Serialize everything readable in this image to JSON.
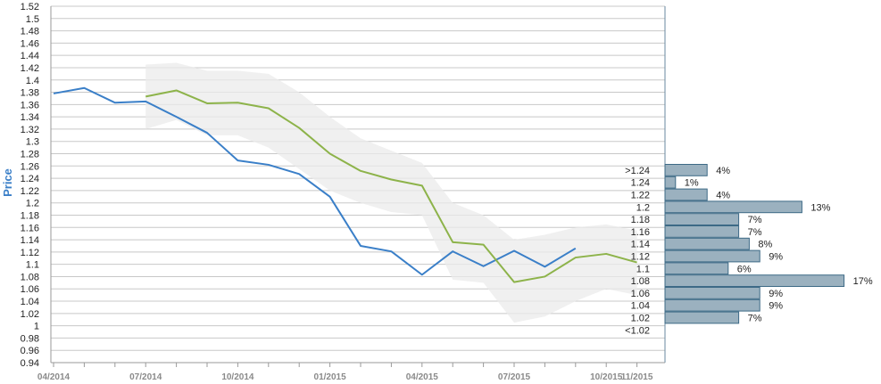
{
  "chart_data": {
    "type": "line",
    "ylabel": "Price",
    "xlabel": "",
    "ylim": [
      0.94,
      1.52
    ],
    "y_ticks": [
      "0.94",
      "0.96",
      "0.98",
      "1",
      "1.02",
      "1.04",
      "1.06",
      "1.08",
      "1.1",
      "1.12",
      "1.14",
      "1.16",
      "1.18",
      "1.2",
      "1.22",
      "1.24",
      "1.26",
      "1.28",
      "1.3",
      "1.32",
      "1.34",
      "1.36",
      "1.38",
      "1.4",
      "1.42",
      "1.44",
      "1.46",
      "1.48",
      "1.5",
      "1.52"
    ],
    "x_tick_labels": [
      "04/2014",
      "07/2014",
      "10/2014",
      "01/2015",
      "04/2015",
      "07/2015",
      "10/2015",
      "11/2015"
    ],
    "grid": true,
    "colors": {
      "blue": "#3a7fc8",
      "green": "#8db34a",
      "band": "#ebebeb",
      "dist_bar": "#9bb1bf"
    },
    "series": [
      {
        "x": [
          "04/2014",
          "05/2014",
          "06/2014",
          "07/2014",
          "08/2014",
          "09/2014",
          "10/2014",
          "11/2014",
          "12/2014",
          "01/2015",
          "02/2015",
          "03/2015",
          "04/2015",
          "05/2015",
          "06/2015",
          "07/2015",
          "08/2015",
          "09/2015"
        ],
        "values": [
          1.378,
          1.387,
          1.363,
          1.365,
          1.34,
          1.314,
          1.269,
          1.262,
          1.247,
          1.21,
          1.13,
          1.121,
          1.083,
          1.121,
          1.097,
          1.122,
          1.096,
          1.126
        ]
      },
      {
        "x": [
          "07/2014",
          "08/2014",
          "09/2014",
          "10/2014",
          "11/2014",
          "12/2014",
          "01/2015",
          "02/2015",
          "03/2015",
          "04/2015",
          "05/2015",
          "06/2015",
          "07/2015",
          "08/2015",
          "09/2015",
          "10/2015",
          "11/2015"
        ],
        "values": [
          1.373,
          1.383,
          1.362,
          1.363,
          1.354,
          1.322,
          1.28,
          1.252,
          1.238,
          1.228,
          1.136,
          1.132,
          1.071,
          1.08,
          1.111,
          1.117,
          1.103
        ]
      }
    ],
    "band": {
      "x": [
        "07/2014",
        "08/2014",
        "09/2014",
        "10/2014",
        "11/2014",
        "12/2014",
        "01/2015",
        "02/2015",
        "03/2015",
        "04/2015",
        "05/2015",
        "06/2015",
        "07/2015",
        "08/2015",
        "09/2015",
        "10/2015",
        "11/2015"
      ],
      "upper": [
        1.425,
        1.428,
        1.415,
        1.415,
        1.41,
        1.38,
        1.34,
        1.305,
        1.285,
        1.265,
        1.2,
        1.18,
        1.14,
        1.148,
        1.16,
        1.165,
        1.155
      ],
      "lower": [
        1.32,
        1.335,
        1.31,
        1.31,
        1.29,
        1.255,
        1.22,
        1.2,
        1.185,
        1.18,
        1.075,
        1.07,
        1.005,
        1.015,
        1.04,
        1.06,
        1.05
      ]
    },
    "distribution": {
      "labels": [
        ">1.24",
        "1.24",
        "1.22",
        "1.2",
        "1.18",
        "1.16",
        "1.14",
        "1.12",
        "1.1",
        "1.08",
        "1.06",
        "1.04",
        "1.02",
        "<1.02"
      ],
      "values": [
        4,
        1,
        4,
        13,
        7,
        7,
        8,
        9,
        6,
        17,
        9,
        9,
        7,
        0
      ],
      "pct_labels": [
        "4%",
        "1%",
        "4%",
        "13%",
        "7%",
        "7%",
        "8%",
        "9%",
        "6%",
        "17%",
        "9%",
        "9%",
        "7%",
        ""
      ]
    }
  }
}
